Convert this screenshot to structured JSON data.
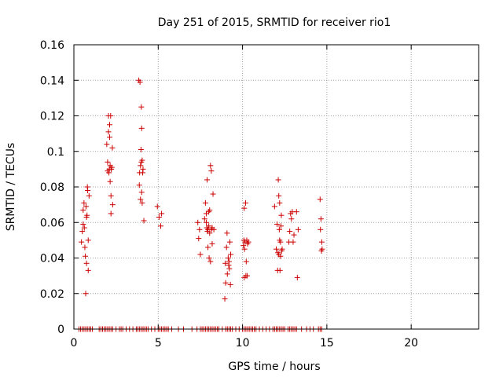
{
  "chart_data": {
    "type": "scatter",
    "title": "Day 251 of 2015, SRMTID for receiver rio1",
    "xlabel": "GPS time / hours",
    "ylabel": "SRMTID / TECUs",
    "xlim": [
      0,
      24
    ],
    "ylim": [
      0,
      0.16
    ],
    "grid": true,
    "marker": "+",
    "marker_color": "#cc0000",
    "xticks": [
      0,
      5,
      10,
      15,
      20
    ],
    "xtick_labels": [
      "0",
      "5",
      "10",
      "15",
      "20"
    ],
    "yticks": [
      0,
      0.02,
      0.04,
      0.06,
      0.08,
      0.1,
      0.12,
      0.14,
      0.16
    ],
    "ytick_labels": [
      "0",
      "0.02",
      "0.04",
      "0.06",
      "0.08",
      "0.1",
      "0.12",
      "0.14",
      "0.16"
    ],
    "points": [
      [
        0.45,
        0.049
      ],
      [
        0.5,
        0.055
      ],
      [
        0.55,
        0.059
      ],
      [
        0.55,
        0.067
      ],
      [
        0.6,
        0.071
      ],
      [
        0.62,
        0.057
      ],
      [
        0.65,
        0.046
      ],
      [
        0.68,
        0.041
      ],
      [
        0.7,
        0.02
      ],
      [
        0.72,
        0.069
      ],
      [
        0.75,
        0.063
      ],
      [
        0.75,
        0.037
      ],
      [
        0.78,
        0.064
      ],
      [
        0.8,
        0.08
      ],
      [
        0.82,
        0.078
      ],
      [
        0.85,
        0.033
      ],
      [
        0.85,
        0.05
      ],
      [
        0.9,
        0.075
      ],
      [
        1.95,
        0.104
      ],
      [
        2.0,
        0.094
      ],
      [
        2.0,
        0.089
      ],
      [
        2.05,
        0.12
      ],
      [
        2.05,
        0.111
      ],
      [
        2.08,
        0.088
      ],
      [
        2.1,
        0.09
      ],
      [
        2.12,
        0.115
      ],
      [
        2.12,
        0.108
      ],
      [
        2.15,
        0.092
      ],
      [
        2.15,
        0.083
      ],
      [
        2.18,
        0.12
      ],
      [
        2.2,
        0.075
      ],
      [
        2.2,
        0.065
      ],
      [
        2.22,
        0.09
      ],
      [
        2.25,
        0.091
      ],
      [
        2.28,
        0.102
      ],
      [
        2.3,
        0.07
      ],
      [
        3.85,
        0.14
      ],
      [
        3.88,
        0.081
      ],
      [
        3.9,
        0.088
      ],
      [
        3.92,
        0.139
      ],
      [
        3.95,
        0.073
      ],
      [
        3.95,
        0.092
      ],
      [
        3.98,
        0.101
      ],
      [
        4.0,
        0.125
      ],
      [
        4.0,
        0.094
      ],
      [
        4.02,
        0.077
      ],
      [
        4.02,
        0.113
      ],
      [
        4.05,
        0.071
      ],
      [
        4.05,
        0.095
      ],
      [
        4.08,
        0.088
      ],
      [
        4.1,
        0.09
      ],
      [
        4.15,
        0.061
      ],
      [
        4.95,
        0.069
      ],
      [
        5.05,
        0.063
      ],
      [
        5.15,
        0.058
      ],
      [
        5.2,
        0.065
      ],
      [
        7.35,
        0.06
      ],
      [
        7.4,
        0.051
      ],
      [
        7.45,
        0.056
      ],
      [
        7.5,
        0.042
      ],
      [
        7.75,
        0.062
      ],
      [
        7.8,
        0.071
      ],
      [
        7.85,
        0.065
      ],
      [
        7.85,
        0.06
      ],
      [
        7.88,
        0.057
      ],
      [
        7.9,
        0.084
      ],
      [
        7.92,
        0.055
      ],
      [
        7.95,
        0.046
      ],
      [
        7.95,
        0.056
      ],
      [
        8.0,
        0.066
      ],
      [
        8.0,
        0.058
      ],
      [
        8.02,
        0.04
      ],
      [
        8.05,
        0.054
      ],
      [
        8.05,
        0.067
      ],
      [
        8.1,
        0.038
      ],
      [
        8.1,
        0.092
      ],
      [
        8.15,
        0.089
      ],
      [
        8.15,
        0.056
      ],
      [
        8.2,
        0.057
      ],
      [
        8.2,
        0.048
      ],
      [
        8.25,
        0.076
      ],
      [
        8.3,
        0.056
      ],
      [
        8.95,
        0.017
      ],
      [
        8.98,
        0.037
      ],
      [
        9.0,
        0.026
      ],
      [
        9.05,
        0.046
      ],
      [
        9.08,
        0.054
      ],
      [
        9.1,
        0.031
      ],
      [
        9.15,
        0.04
      ],
      [
        9.18,
        0.036
      ],
      [
        9.2,
        0.038
      ],
      [
        9.22,
        0.034
      ],
      [
        9.25,
        0.049
      ],
      [
        9.28,
        0.025
      ],
      [
        9.3,
        0.042
      ],
      [
        10.05,
        0.047
      ],
      [
        10.08,
        0.05
      ],
      [
        10.1,
        0.068
      ],
      [
        10.1,
        0.029
      ],
      [
        10.12,
        0.045
      ],
      [
        10.15,
        0.049
      ],
      [
        10.18,
        0.071
      ],
      [
        10.2,
        0.03
      ],
      [
        10.22,
        0.038
      ],
      [
        10.25,
        0.05
      ],
      [
        10.28,
        0.03
      ],
      [
        10.3,
        0.048
      ],
      [
        10.35,
        0.049
      ],
      [
        11.9,
        0.069
      ],
      [
        12.0,
        0.045
      ],
      [
        12.05,
        0.059
      ],
      [
        12.08,
        0.033
      ],
      [
        12.1,
        0.043
      ],
      [
        12.12,
        0.084
      ],
      [
        12.15,
        0.075
      ],
      [
        12.15,
        0.042
      ],
      [
        12.18,
        0.056
      ],
      [
        12.2,
        0.05
      ],
      [
        12.2,
        0.071
      ],
      [
        12.22,
        0.033
      ],
      [
        12.25,
        0.041
      ],
      [
        12.25,
        0.049
      ],
      [
        12.28,
        0.058
      ],
      [
        12.3,
        0.064
      ],
      [
        12.32,
        0.044
      ],
      [
        12.35,
        0.045
      ],
      [
        12.75,
        0.049
      ],
      [
        12.8,
        0.055
      ],
      [
        12.85,
        0.065
      ],
      [
        12.9,
        0.062
      ],
      [
        12.95,
        0.066
      ],
      [
        13.0,
        0.049
      ],
      [
        13.05,
        0.053
      ],
      [
        13.2,
        0.066
      ],
      [
        13.25,
        0.029
      ],
      [
        13.3,
        0.056
      ],
      [
        14.6,
        0.073
      ],
      [
        14.62,
        0.056
      ],
      [
        14.65,
        0.062
      ],
      [
        14.68,
        0.044
      ],
      [
        14.7,
        0.049
      ],
      [
        14.72,
        0.045
      ]
    ],
    "zero_points": [
      0.3,
      0.4,
      0.5,
      0.6,
      0.7,
      0.8,
      0.9,
      1.0,
      1.1,
      1.5,
      1.6,
      1.7,
      1.8,
      1.9,
      2.0,
      2.1,
      2.2,
      2.3,
      2.5,
      2.7,
      2.8,
      2.9,
      3.1,
      3.3,
      3.5,
      3.7,
      3.8,
      3.9,
      4.0,
      4.1,
      4.2,
      4.3,
      4.4,
      4.6,
      4.8,
      5.0,
      5.1,
      5.2,
      5.3,
      5.4,
      5.5,
      5.6,
      5.8,
      6.2,
      6.5,
      7.0,
      7.3,
      7.5,
      7.6,
      7.7,
      7.8,
      7.9,
      8.0,
      8.1,
      8.2,
      8.3,
      8.4,
      8.5,
      8.6,
      8.8,
      9.0,
      9.1,
      9.2,
      9.3,
      9.4,
      9.6,
      9.8,
      10.0,
      10.1,
      10.2,
      10.3,
      10.4,
      10.5,
      10.6,
      10.7,
      10.8,
      11.0,
      11.2,
      11.4,
      11.6,
      11.8,
      11.9,
      12.0,
      12.1,
      12.2,
      12.3,
      12.4,
      12.5,
      12.7,
      12.8,
      12.9,
      13.0,
      13.1,
      13.2,
      13.5,
      13.8,
      14.0,
      14.2,
      14.5,
      14.6,
      14.7
    ]
  }
}
